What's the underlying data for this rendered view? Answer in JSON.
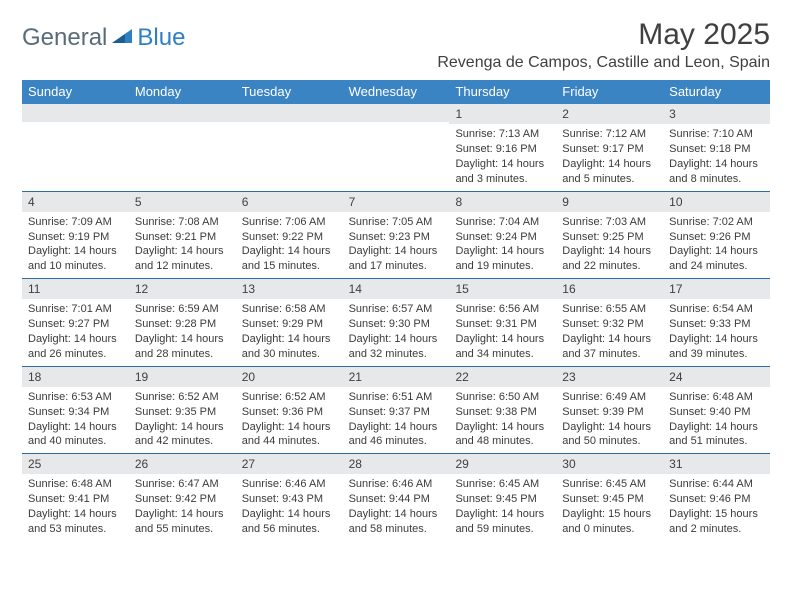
{
  "brand": {
    "part1": "General",
    "part2": "Blue"
  },
  "title": "May 2025",
  "location": "Revenga de Campos, Castille and Leon, Spain",
  "colors": {
    "header_bg": "#3b84c4",
    "header_text": "#ffffff",
    "divider": "#2e6ca3",
    "daynum_bg": "#e7e8e9",
    "text": "#3b3b3b",
    "brand_gray": "#5a6b78",
    "brand_blue": "#2f80c3"
  },
  "dow": [
    "Sunday",
    "Monday",
    "Tuesday",
    "Wednesday",
    "Thursday",
    "Friday",
    "Saturday"
  ],
  "weeks": [
    [
      {
        "n": "",
        "sr": "",
        "ss": "",
        "dl": ""
      },
      {
        "n": "",
        "sr": "",
        "ss": "",
        "dl": ""
      },
      {
        "n": "",
        "sr": "",
        "ss": "",
        "dl": ""
      },
      {
        "n": "",
        "sr": "",
        "ss": "",
        "dl": ""
      },
      {
        "n": "1",
        "sr": "Sunrise: 7:13 AM",
        "ss": "Sunset: 9:16 PM",
        "dl": "Daylight: 14 hours and 3 minutes."
      },
      {
        "n": "2",
        "sr": "Sunrise: 7:12 AM",
        "ss": "Sunset: 9:17 PM",
        "dl": "Daylight: 14 hours and 5 minutes."
      },
      {
        "n": "3",
        "sr": "Sunrise: 7:10 AM",
        "ss": "Sunset: 9:18 PM",
        "dl": "Daylight: 14 hours and 8 minutes."
      }
    ],
    [
      {
        "n": "4",
        "sr": "Sunrise: 7:09 AM",
        "ss": "Sunset: 9:19 PM",
        "dl": "Daylight: 14 hours and 10 minutes."
      },
      {
        "n": "5",
        "sr": "Sunrise: 7:08 AM",
        "ss": "Sunset: 9:21 PM",
        "dl": "Daylight: 14 hours and 12 minutes."
      },
      {
        "n": "6",
        "sr": "Sunrise: 7:06 AM",
        "ss": "Sunset: 9:22 PM",
        "dl": "Daylight: 14 hours and 15 minutes."
      },
      {
        "n": "7",
        "sr": "Sunrise: 7:05 AM",
        "ss": "Sunset: 9:23 PM",
        "dl": "Daylight: 14 hours and 17 minutes."
      },
      {
        "n": "8",
        "sr": "Sunrise: 7:04 AM",
        "ss": "Sunset: 9:24 PM",
        "dl": "Daylight: 14 hours and 19 minutes."
      },
      {
        "n": "9",
        "sr": "Sunrise: 7:03 AM",
        "ss": "Sunset: 9:25 PM",
        "dl": "Daylight: 14 hours and 22 minutes."
      },
      {
        "n": "10",
        "sr": "Sunrise: 7:02 AM",
        "ss": "Sunset: 9:26 PM",
        "dl": "Daylight: 14 hours and 24 minutes."
      }
    ],
    [
      {
        "n": "11",
        "sr": "Sunrise: 7:01 AM",
        "ss": "Sunset: 9:27 PM",
        "dl": "Daylight: 14 hours and 26 minutes."
      },
      {
        "n": "12",
        "sr": "Sunrise: 6:59 AM",
        "ss": "Sunset: 9:28 PM",
        "dl": "Daylight: 14 hours and 28 minutes."
      },
      {
        "n": "13",
        "sr": "Sunrise: 6:58 AM",
        "ss": "Sunset: 9:29 PM",
        "dl": "Daylight: 14 hours and 30 minutes."
      },
      {
        "n": "14",
        "sr": "Sunrise: 6:57 AM",
        "ss": "Sunset: 9:30 PM",
        "dl": "Daylight: 14 hours and 32 minutes."
      },
      {
        "n": "15",
        "sr": "Sunrise: 6:56 AM",
        "ss": "Sunset: 9:31 PM",
        "dl": "Daylight: 14 hours and 34 minutes."
      },
      {
        "n": "16",
        "sr": "Sunrise: 6:55 AM",
        "ss": "Sunset: 9:32 PM",
        "dl": "Daylight: 14 hours and 37 minutes."
      },
      {
        "n": "17",
        "sr": "Sunrise: 6:54 AM",
        "ss": "Sunset: 9:33 PM",
        "dl": "Daylight: 14 hours and 39 minutes."
      }
    ],
    [
      {
        "n": "18",
        "sr": "Sunrise: 6:53 AM",
        "ss": "Sunset: 9:34 PM",
        "dl": "Daylight: 14 hours and 40 minutes."
      },
      {
        "n": "19",
        "sr": "Sunrise: 6:52 AM",
        "ss": "Sunset: 9:35 PM",
        "dl": "Daylight: 14 hours and 42 minutes."
      },
      {
        "n": "20",
        "sr": "Sunrise: 6:52 AM",
        "ss": "Sunset: 9:36 PM",
        "dl": "Daylight: 14 hours and 44 minutes."
      },
      {
        "n": "21",
        "sr": "Sunrise: 6:51 AM",
        "ss": "Sunset: 9:37 PM",
        "dl": "Daylight: 14 hours and 46 minutes."
      },
      {
        "n": "22",
        "sr": "Sunrise: 6:50 AM",
        "ss": "Sunset: 9:38 PM",
        "dl": "Daylight: 14 hours and 48 minutes."
      },
      {
        "n": "23",
        "sr": "Sunrise: 6:49 AM",
        "ss": "Sunset: 9:39 PM",
        "dl": "Daylight: 14 hours and 50 minutes."
      },
      {
        "n": "24",
        "sr": "Sunrise: 6:48 AM",
        "ss": "Sunset: 9:40 PM",
        "dl": "Daylight: 14 hours and 51 minutes."
      }
    ],
    [
      {
        "n": "25",
        "sr": "Sunrise: 6:48 AM",
        "ss": "Sunset: 9:41 PM",
        "dl": "Daylight: 14 hours and 53 minutes."
      },
      {
        "n": "26",
        "sr": "Sunrise: 6:47 AM",
        "ss": "Sunset: 9:42 PM",
        "dl": "Daylight: 14 hours and 55 minutes."
      },
      {
        "n": "27",
        "sr": "Sunrise: 6:46 AM",
        "ss": "Sunset: 9:43 PM",
        "dl": "Daylight: 14 hours and 56 minutes."
      },
      {
        "n": "28",
        "sr": "Sunrise: 6:46 AM",
        "ss": "Sunset: 9:44 PM",
        "dl": "Daylight: 14 hours and 58 minutes."
      },
      {
        "n": "29",
        "sr": "Sunrise: 6:45 AM",
        "ss": "Sunset: 9:45 PM",
        "dl": "Daylight: 14 hours and 59 minutes."
      },
      {
        "n": "30",
        "sr": "Sunrise: 6:45 AM",
        "ss": "Sunset: 9:45 PM",
        "dl": "Daylight: 15 hours and 0 minutes."
      },
      {
        "n": "31",
        "sr": "Sunrise: 6:44 AM",
        "ss": "Sunset: 9:46 PM",
        "dl": "Daylight: 15 hours and 2 minutes."
      }
    ]
  ]
}
